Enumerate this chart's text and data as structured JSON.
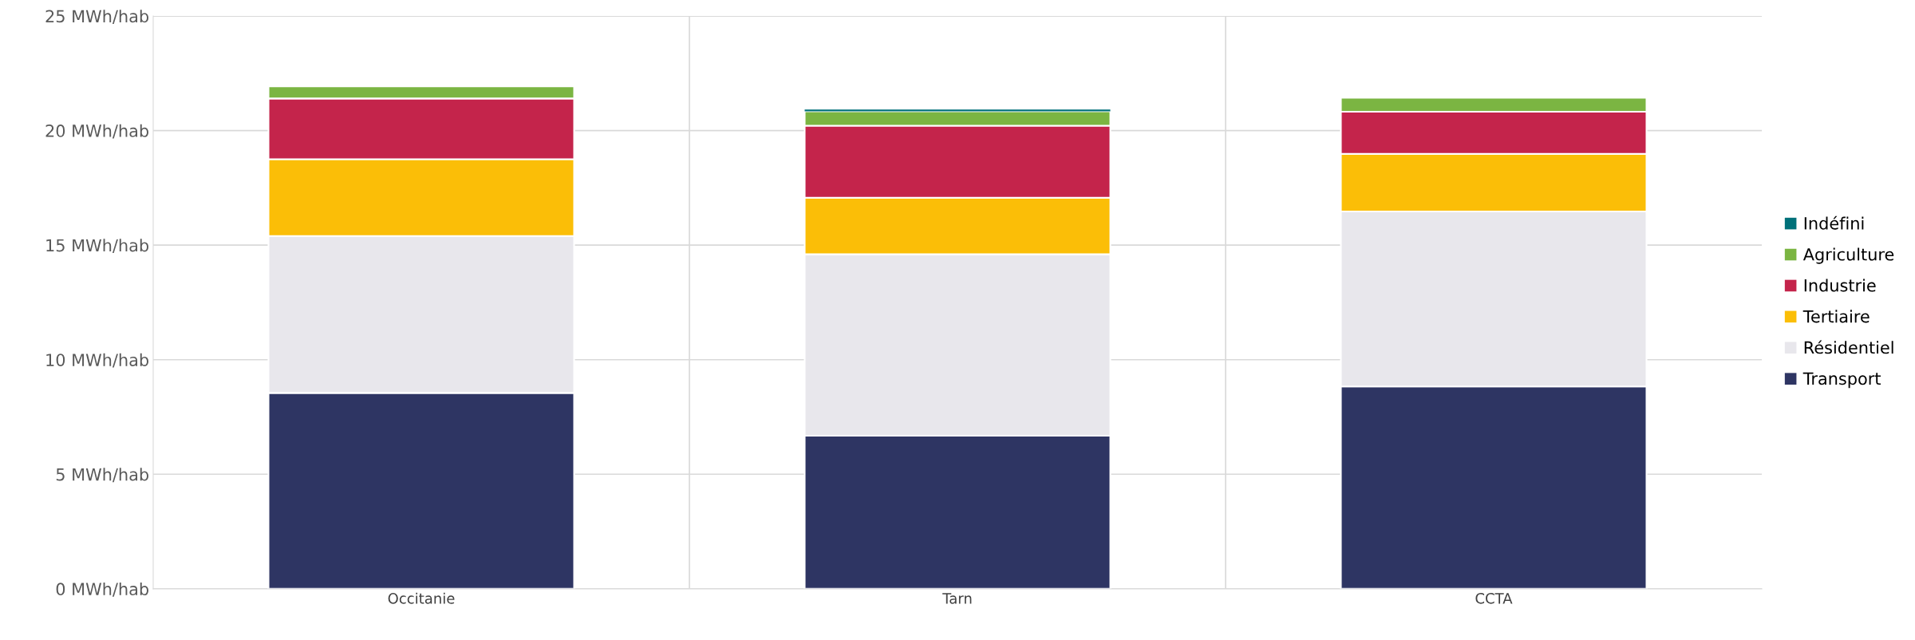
{
  "chart_data": {
    "type": "bar",
    "stacked": true,
    "categories": [
      "Occitanie",
      "Tarn",
      "CCTA"
    ],
    "series": [
      {
        "name": "Transport",
        "color": "#2e3563",
        "values": [
          8.55,
          6.68,
          8.83
        ]
      },
      {
        "name": "Résidentiel",
        "color": "#e8e7ec",
        "values": [
          6.85,
          7.92,
          7.64
        ]
      },
      {
        "name": "Tertiaire",
        "color": "#fbbe07",
        "values": [
          3.35,
          2.47,
          2.51
        ]
      },
      {
        "name": "Industrie",
        "color": "#c4244b",
        "values": [
          2.65,
          3.14,
          1.84
        ]
      },
      {
        "name": "Agriculture",
        "color": "#7bb542",
        "values": [
          0.53,
          0.63,
          0.61
        ]
      },
      {
        "name": "Indéfini",
        "color": "#00717a",
        "values": [
          0,
          0.08,
          0
        ]
      }
    ],
    "ylim": [
      0,
      25
    ],
    "yticks": [
      {
        "value": 0,
        "label": "0 MWh/hab"
      },
      {
        "value": 5,
        "label": "5 MWh/hab"
      },
      {
        "value": 10,
        "label": "10 MWh/hab"
      },
      {
        "value": 15,
        "label": "15 MWh/hab"
      },
      {
        "value": 20,
        "label": "20 MWh/hab"
      },
      {
        "value": 25,
        "label": "25 MWh/hab"
      }
    ],
    "grid": true,
    "legend": "right"
  }
}
